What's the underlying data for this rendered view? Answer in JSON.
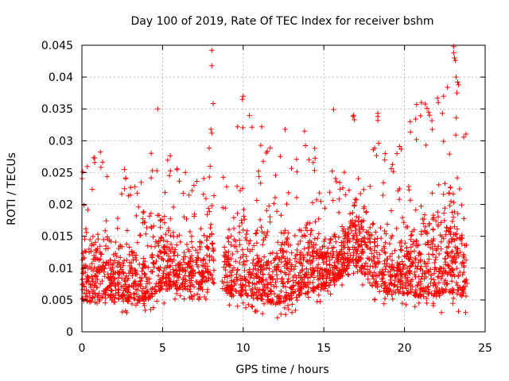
{
  "chart_data": {
    "type": "scatter",
    "title": "Day 100 of 2019, Rate Of TEC Index for receiver bshm",
    "xlabel": "GPS time / hours",
    "ylabel": "ROTI / TECUs",
    "xlim": [
      0,
      25
    ],
    "ylim": [
      0,
      0.045
    ],
    "xticks": [
      "0",
      "5",
      "10",
      "15",
      "20",
      "25"
    ],
    "yticks": [
      "0",
      "0.005",
      "0.01",
      "0.015",
      "0.02",
      "0.025",
      "0.03",
      "0.035",
      "0.04",
      "0.045"
    ],
    "grid": true,
    "marker": "+",
    "color": "#ff0000",
    "series": [
      {
        "name": "ROTI",
        "envelope": [
          {
            "x": 0.0,
            "low": 0.003,
            "high": 0.028
          },
          {
            "x": 1.0,
            "low": 0.002,
            "high": 0.03
          },
          {
            "x": 2.0,
            "low": 0.003,
            "high": 0.029
          },
          {
            "x": 3.0,
            "low": 0.003,
            "high": 0.025
          },
          {
            "x": 4.0,
            "low": 0.003,
            "high": 0.025
          },
          {
            "x": 4.7,
            "low": 0.004,
            "high": 0.035
          },
          {
            "x": 5.5,
            "low": 0.005,
            "high": 0.028
          },
          {
            "x": 6.5,
            "low": 0.005,
            "high": 0.026
          },
          {
            "x": 7.5,
            "low": 0.005,
            "high": 0.025
          },
          {
            "x": 8.0,
            "low": 0.005,
            "high": 0.044
          },
          {
            "x": 9.3,
            "low": 0.004,
            "high": 0.024
          },
          {
            "x": 10.0,
            "low": 0.003,
            "high": 0.037
          },
          {
            "x": 11.0,
            "low": 0.003,
            "high": 0.03
          },
          {
            "x": 12.0,
            "low": 0.002,
            "high": 0.032
          },
          {
            "x": 13.0,
            "low": 0.003,
            "high": 0.029
          },
          {
            "x": 14.0,
            "low": 0.004,
            "high": 0.031
          },
          {
            "x": 15.0,
            "low": 0.005,
            "high": 0.026
          },
          {
            "x": 16.0,
            "low": 0.007,
            "high": 0.025
          },
          {
            "x": 16.8,
            "low": 0.009,
            "high": 0.034
          },
          {
            "x": 18.0,
            "low": 0.005,
            "high": 0.034
          },
          {
            "x": 19.0,
            "low": 0.004,
            "high": 0.028
          },
          {
            "x": 20.0,
            "low": 0.004,
            "high": 0.03
          },
          {
            "x": 21.0,
            "low": 0.003,
            "high": 0.036
          },
          {
            "x": 22.0,
            "low": 0.003,
            "high": 0.036
          },
          {
            "x": 23.0,
            "low": 0.003,
            "high": 0.045
          },
          {
            "x": 23.9,
            "low": 0.003,
            "high": 0.032
          }
        ],
        "gaps": [
          [
            8.2,
            8.7
          ]
        ],
        "outliers": [
          [
            8.05,
            0.0442
          ],
          [
            8.05,
            0.0418
          ],
          [
            10.0,
            0.037
          ],
          [
            9.95,
            0.0365
          ],
          [
            23.05,
            0.0448
          ],
          [
            23.05,
            0.0438
          ],
          [
            23.1,
            0.043
          ],
          [
            23.3,
            0.0392
          ],
          [
            23.35,
            0.0388
          ],
          [
            23.2,
            0.04
          ],
          [
            23.25,
            0.0375
          ],
          [
            4.7,
            0.035
          ],
          [
            18.35,
            0.0343
          ],
          [
            18.35,
            0.0338
          ],
          [
            18.35,
            0.0332
          ],
          [
            15.6,
            0.0349
          ],
          [
            22.05,
            0.0367
          ],
          [
            22.1,
            0.036
          ],
          [
            20.75,
            0.0357
          ],
          [
            21.05,
            0.036
          ],
          [
            9.65,
            0.0322
          ],
          [
            16.85,
            0.034
          ],
          [
            16.9,
            0.0333
          ],
          [
            8.0,
            0.0318
          ],
          [
            8.05,
            0.0312
          ],
          [
            11.15,
            0.0322
          ],
          [
            12.6,
            0.0318
          ],
          [
            13.8,
            0.0315
          ],
          [
            21.5,
            0.0345
          ],
          [
            21.55,
            0.034
          ],
          [
            21.4,
            0.0351
          ],
          [
            20.35,
            0.033
          ]
        ]
      }
    ]
  }
}
